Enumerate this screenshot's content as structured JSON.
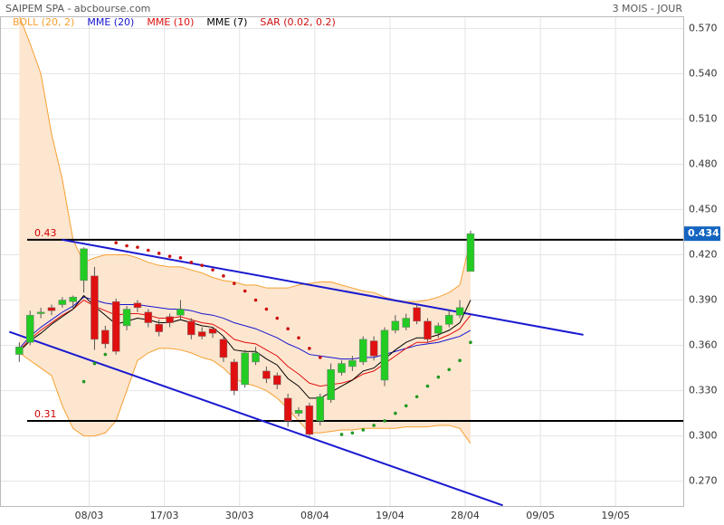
{
  "chart_data": {
    "type": "candlestick",
    "title": "SAIPEM SPA - abcbourse.com",
    "subtitle": "3 MOIS - JOUR",
    "categories": [
      null,
      null,
      null,
      null,
      null,
      null,
      null,
      null,
      null,
      null,
      null,
      null,
      null,
      null,
      null,
      null,
      null,
      null,
      null,
      null,
      null,
      null,
      null,
      null,
      null,
      null,
      null,
      null,
      null,
      null,
      null,
      null,
      null,
      null,
      null,
      null,
      null,
      null,
      null,
      null,
      null,
      null,
      null
    ],
    "open": [
      0.354,
      0.362,
      0.381,
      0.385,
      0.387,
      0.389,
      0.403,
      0.406,
      0.37,
      0.389,
      0.373,
      0.388,
      0.382,
      0.374,
      0.379,
      0.38,
      0.376,
      0.369,
      0.371,
      0.364,
      0.349,
      0.334,
      0.349,
      0.343,
      0.34,
      0.325,
      0.315,
      0.32,
      0.31,
      0.324,
      0.342,
      0.346,
      0.349,
      0.363,
      0.337,
      0.37,
      0.372,
      0.385,
      0.376,
      0.368,
      0.374,
      0.38,
      0.409
    ],
    "high": [
      0.362,
      0.383,
      0.385,
      0.387,
      0.392,
      0.393,
      0.425,
      0.412,
      0.373,
      0.391,
      0.386,
      0.39,
      0.384,
      0.377,
      0.381,
      0.39,
      0.378,
      0.372,
      0.372,
      0.366,
      0.351,
      0.357,
      0.359,
      0.346,
      0.342,
      0.328,
      0.319,
      0.322,
      0.328,
      0.348,
      0.35,
      0.353,
      0.366,
      0.366,
      0.372,
      0.38,
      0.381,
      0.387,
      0.378,
      0.375,
      0.384,
      0.39,
      0.436
    ],
    "low": [
      0.349,
      0.36,
      0.378,
      0.38,
      0.385,
      0.384,
      0.395,
      0.357,
      0.358,
      0.354,
      0.37,
      0.382,
      0.372,
      0.366,
      0.372,
      0.377,
      0.364,
      0.364,
      0.365,
      0.349,
      0.327,
      0.332,
      0.347,
      0.335,
      0.331,
      0.306,
      0.313,
      0.3,
      0.307,
      0.322,
      0.34,
      0.343,
      0.347,
      0.35,
      0.333,
      0.368,
      0.37,
      0.374,
      0.362,
      0.365,
      0.372,
      0.378,
      0.409
    ],
    "close": [
      0.359,
      0.38,
      0.382,
      0.383,
      0.39,
      0.392,
      0.424,
      0.364,
      0.361,
      0.356,
      0.384,
      0.385,
      0.375,
      0.369,
      0.375,
      0.384,
      0.367,
      0.366,
      0.368,
      0.352,
      0.33,
      0.355,
      0.355,
      0.338,
      0.334,
      0.31,
      0.317,
      0.301,
      0.326,
      0.344,
      0.348,
      0.35,
      0.364,
      0.353,
      0.37,
      0.376,
      0.378,
      0.376,
      0.364,
      0.373,
      0.38,
      0.385,
      0.434
    ],
    "up_color": "#22cc22",
    "down_color": "#e01010",
    "bollinger": {
      "name": "BOLL (20, 2)",
      "color": "#f5a030",
      "fill": "#fde6cf",
      "upper": [
        0.578,
        0.56,
        0.54,
        0.5,
        0.47,
        0.43,
        0.415,
        0.418,
        0.42,
        0.42,
        0.42,
        0.418,
        0.415,
        0.413,
        0.412,
        0.412,
        0.41,
        0.408,
        0.405,
        0.403,
        0.402,
        0.4,
        0.4,
        0.398,
        0.398,
        0.398,
        0.4,
        0.401,
        0.402,
        0.402,
        0.4,
        0.398,
        0.396,
        0.395,
        0.392,
        0.39,
        0.389,
        0.389,
        0.39,
        0.392,
        0.395,
        0.4,
        0.43
      ],
      "lower": [
        0.355,
        0.35,
        0.345,
        0.34,
        0.32,
        0.305,
        0.3,
        0.3,
        0.302,
        0.31,
        0.33,
        0.35,
        0.355,
        0.358,
        0.358,
        0.357,
        0.355,
        0.352,
        0.35,
        0.345,
        0.338,
        0.335,
        0.333,
        0.33,
        0.325,
        0.318,
        0.31,
        0.302,
        0.302,
        0.303,
        0.304,
        0.304,
        0.305,
        0.305,
        0.305,
        0.305,
        0.306,
        0.306,
        0.306,
        0.307,
        0.307,
        0.305,
        0.295
      ]
    },
    "series": [
      {
        "name": "MME (20)",
        "color": "#1515d0",
        "values": [
          0.358,
          0.366,
          0.372,
          0.377,
          0.382,
          0.386,
          0.392,
          0.39,
          0.388,
          0.387,
          0.387,
          0.387,
          0.386,
          0.385,
          0.384,
          0.384,
          0.383,
          0.381,
          0.38,
          0.378,
          0.375,
          0.373,
          0.371,
          0.368,
          0.365,
          0.361,
          0.358,
          0.354,
          0.353,
          0.352,
          0.351,
          0.351,
          0.352,
          0.352,
          0.354,
          0.356,
          0.358,
          0.36,
          0.361,
          0.362,
          0.364,
          0.366,
          0.37
        ]
      },
      {
        "name": "MME (10)",
        "color": "#e01010",
        "values": [
          0.357,
          0.364,
          0.37,
          0.375,
          0.38,
          0.384,
          0.39,
          0.386,
          0.383,
          0.38,
          0.381,
          0.381,
          0.38,
          0.378,
          0.378,
          0.379,
          0.377,
          0.375,
          0.374,
          0.37,
          0.364,
          0.362,
          0.361,
          0.357,
          0.353,
          0.346,
          0.341,
          0.335,
          0.333,
          0.334,
          0.335,
          0.337,
          0.341,
          0.343,
          0.348,
          0.353,
          0.358,
          0.362,
          0.362,
          0.364,
          0.367,
          0.371,
          0.38
        ]
      },
      {
        "name": "MME (7)",
        "color": "#000000",
        "values": [
          0.356,
          0.363,
          0.368,
          0.374,
          0.379,
          0.384,
          0.393,
          0.386,
          0.38,
          0.374,
          0.376,
          0.378,
          0.377,
          0.375,
          0.375,
          0.377,
          0.375,
          0.373,
          0.372,
          0.366,
          0.357,
          0.356,
          0.356,
          0.351,
          0.347,
          0.338,
          0.333,
          0.325,
          0.325,
          0.329,
          0.333,
          0.337,
          0.343,
          0.345,
          0.351,
          0.357,
          0.362,
          0.365,
          0.365,
          0.367,
          0.37,
          0.375,
          0.39
        ]
      }
    ],
    "sar": {
      "name": "SAR (0.02, 0.2)",
      "color": "#cc1010",
      "color_up": "#229922",
      "values": [
        null,
        null,
        null,
        null,
        null,
        null,
        0.336,
        0.348,
        0.354,
        0.428,
        0.426,
        0.425,
        0.423,
        0.421,
        0.419,
        0.418,
        0.415,
        0.413,
        0.41,
        0.406,
        0.401,
        0.396,
        0.39,
        0.384,
        0.378,
        0.371,
        0.365,
        0.358,
        0.352,
        null,
        0.301,
        0.302,
        0.304,
        0.307,
        0.31,
        0.315,
        0.32,
        0.326,
        0.333,
        0.339,
        0.344,
        0.35,
        0.362
      ]
    },
    "trendlines": [
      {
        "color": "#1a1ad0",
        "x": [
          3.96,
          52.5
        ],
        "y": [
          0.43,
          0.367
        ]
      },
      {
        "color": "#1a1ad0",
        "x": [
          -0.93,
          45
        ],
        "y": [
          0.369,
          0.254
        ]
      }
    ],
    "hlines": [
      0.43,
      0.31
    ],
    "xlim": [
      -1.8,
      61.8
    ],
    "ylim": [
      0.253,
      0.578
    ],
    "xticks": [
      {
        "value": 6.5,
        "label": "08/03"
      },
      {
        "value": 13.5,
        "label": "17/03"
      },
      {
        "value": 20.5,
        "label": "30/03"
      },
      {
        "value": 27.5,
        "label": "08/04"
      },
      {
        "value": 34.5,
        "label": "19/04"
      },
      {
        "value": 41.5,
        "label": "28/04"
      },
      {
        "value": 48.5,
        "label": "09/05"
      },
      {
        "value": 55.5,
        "label": "19/05"
      }
    ],
    "yticks": [
      {
        "value": 0.27,
        "label": "0.270"
      },
      {
        "value": 0.3,
        "label": "0.300"
      },
      {
        "value": 0.33,
        "label": "0.330"
      },
      {
        "value": 0.36,
        "label": "0.360"
      },
      {
        "value": 0.39,
        "label": "0.390"
      },
      {
        "value": 0.42,
        "label": "0.420"
      },
      {
        "value": 0.45,
        "label": "0.450"
      },
      {
        "value": 0.48,
        "label": "0.480"
      },
      {
        "value": 0.51,
        "label": "0.510"
      },
      {
        "value": 0.54,
        "label": "0.540"
      },
      {
        "value": 0.57,
        "label": "0.570"
      }
    ],
    "grid": true
  }
}
